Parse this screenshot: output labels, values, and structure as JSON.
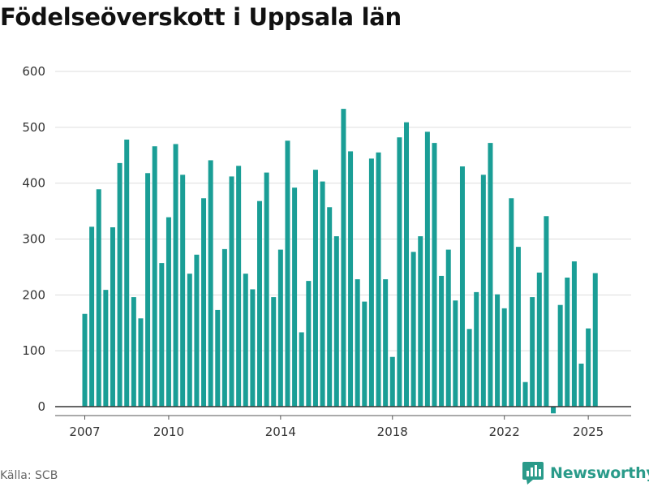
{
  "header": {
    "title": "Födelseöverskott i Uppsala län"
  },
  "footer": {
    "source": "Källa: SCB",
    "brand": "Newsworthy",
    "brand_icon": "newsworthy-logo-icon"
  },
  "colors": {
    "bar": "#1a9e96",
    "grid": "#dddddd",
    "axis": "#333333",
    "brand": "#2a9b8a"
  },
  "chart_data": {
    "type": "bar",
    "title": "Födelseöverskott i Uppsala län",
    "xlabel": "",
    "ylabel": "",
    "frequency": "quarterly",
    "start": "2007Q1",
    "x_ticks": [
      "2007",
      "2010",
      "2014",
      "2018",
      "2022",
      "2025"
    ],
    "y_ticks": [
      0,
      100,
      200,
      300,
      400,
      500,
      600
    ],
    "ylim": [
      -15,
      600
    ],
    "grid": true,
    "values": [
      166,
      322,
      389,
      209,
      321,
      436,
      478,
      196,
      158,
      418,
      466,
      257,
      339,
      470,
      415,
      238,
      272,
      373,
      441,
      173,
      282,
      412,
      431,
      238,
      210,
      368,
      419,
      196,
      281,
      476,
      392,
      133,
      225,
      424,
      403,
      357,
      305,
      533,
      457,
      228,
      188,
      444,
      455,
      228,
      89,
      482,
      509,
      277,
      305,
      492,
      472,
      234,
      281,
      190,
      430,
      139,
      205,
      415,
      472,
      201,
      176,
      373,
      286,
      44,
      196,
      240,
      341,
      -12,
      182,
      231,
      260,
      77,
      140,
      239
    ]
  }
}
